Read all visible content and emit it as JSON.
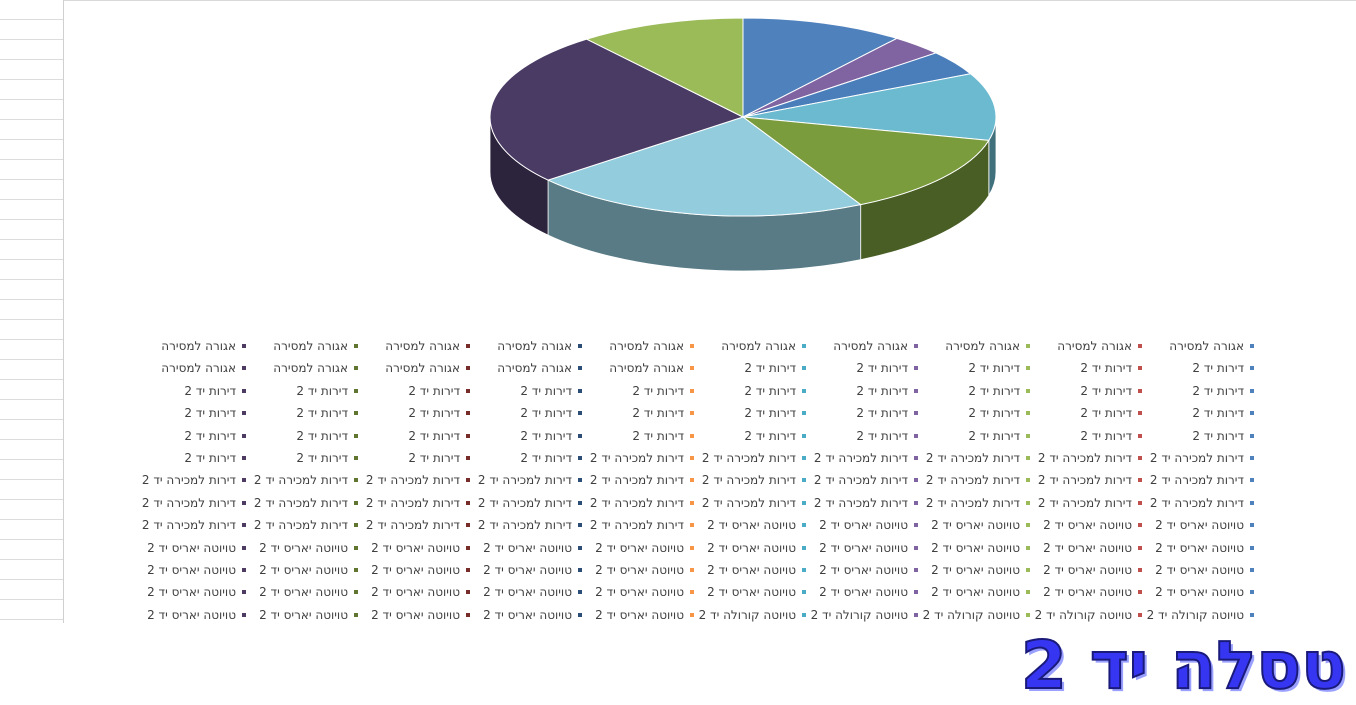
{
  "chart_data": {
    "type": "pie",
    "style": "3d",
    "title": "",
    "slices": [
      {
        "value": 10.4,
        "color": "#4f81bd"
      },
      {
        "value": 3.4,
        "color": "#8064a2"
      },
      {
        "value": 4.0,
        "color": "#4a7ebb"
      },
      {
        "value": 11.0,
        "color": "#6cbad0"
      },
      {
        "value": 13.5,
        "color": "#7a9c3d"
      },
      {
        "value": 21.7,
        "color": "#93cddd"
      },
      {
        "value": 25.4,
        "color": "#4a3b64"
      },
      {
        "value": 10.6,
        "color": "#9bbb59"
      }
    ],
    "legend": {
      "placement": "bottom",
      "columns": 10,
      "rows": [
        [
          "אגורה למסירה",
          "אגורה למסירה",
          "אגורה למסירה",
          "אגורה למסירה",
          "אגורה למסירה",
          "אגורה למסירה",
          "אגורה למסירה",
          "אגורה למסירה",
          "אגורה למסירה",
          "אגורה למסירה"
        ],
        [
          "דירות יד 2",
          "דירות יד 2",
          "דירות יד 2",
          "דירות יד 2",
          "דירות יד 2",
          "אגורה למסירה",
          "אגורה למסירה",
          "אגורה למסירה",
          "אגורה למסירה",
          "אגורה למסירה"
        ],
        [
          "דירות יד 2",
          "דירות יד 2",
          "דירות יד 2",
          "דירות יד 2",
          "דירות יד 2",
          "דירות יד 2",
          "דירות יד 2",
          "דירות יד 2",
          "דירות יד 2",
          "דירות יד 2"
        ],
        [
          "דירות יד 2",
          "דירות יד 2",
          "דירות יד 2",
          "דירות יד 2",
          "דירות יד 2",
          "דירות יד 2",
          "דירות יד 2",
          "דירות יד 2",
          "דירות יד 2",
          "דירות יד 2"
        ],
        [
          "דירות יד 2",
          "דירות יד 2",
          "דירות יד 2",
          "דירות יד 2",
          "דירות יד 2",
          "דירות יד 2",
          "דירות יד 2",
          "דירות יד 2",
          "דירות יד 2",
          "דירות יד 2"
        ],
        [
          "דירות למכירה יד 2",
          "דירות למכירה יד 2",
          "דירות למכירה יד 2",
          "דירות למכירה יד 2",
          "דירות למכירה יד 2",
          "דירות למכירה יד 2",
          "דירות יד 2",
          "דירות יד 2",
          "דירות יד 2",
          "דירות יד 2"
        ],
        [
          "דירות למכירה יד 2",
          "דירות למכירה יד 2",
          "דירות למכירה יד 2",
          "דירות למכירה יד 2",
          "דירות למכירה יד 2",
          "דירות למכירה יד 2",
          "דירות למכירה יד 2",
          "דירות למכירה יד 2",
          "דירות למכירה יד 2",
          "דירות למכירה יד 2"
        ],
        [
          "דירות למכירה יד 2",
          "דירות למכירה יד 2",
          "דירות למכירה יד 2",
          "דירות למכירה יד 2",
          "דירות למכירה יד 2",
          "דירות למכירה יד 2",
          "דירות למכירה יד 2",
          "דירות למכירה יד 2",
          "דירות למכירה יד 2",
          "דירות למכירה יד 2"
        ],
        [
          "טויוטה יאריס יד 2",
          "טויוטה יאריס יד 2",
          "טויוטה יאריס יד 2",
          "טויוטה יאריס יד 2",
          "טויוטה יאריס יד 2",
          "דירות למכירה יד 2",
          "דירות למכירה יד 2",
          "דירות למכירה יד 2",
          "דירות למכירה יד 2",
          "דירות למכירה יד 2"
        ],
        [
          "טויוטה יאריס יד 2",
          "טויוטה יאריס יד 2",
          "טויוטה יאריס יד 2",
          "טויוטה יאריס יד 2",
          "טויוטה יאריס יד 2",
          "טויוטה יאריס יד 2",
          "טויוטה יאריס יד 2",
          "טויוטה יאריס יד 2",
          "טויוטה יאריס יד 2",
          "טויוטה יאריס יד 2"
        ],
        [
          "טויוטה יאריס יד 2",
          "טויוטה יאריס יד 2",
          "טויוטה יאריס יד 2",
          "טויוטה יאריס יד 2",
          "טויוטה יאריס יד 2",
          "טויוטה יאריס יד 2",
          "טויוטה יאריס יד 2",
          "טויוטה יאריס יד 2",
          "טויוטה יאריס יד 2",
          "טויוטה יאריס יד 2"
        ],
        [
          "טויוטה יאריס יד 2",
          "טויוטה יאריס יד 2",
          "טויוטה יאריס יד 2",
          "טויוטה יאריס יד 2",
          "טויוטה יאריס יד 2",
          "טויוטה יאריס יד 2",
          "טויוטה יאריס יד 2",
          "טויוטה יאריס יד 2",
          "טויוטה יאריס יד 2",
          "טויוטה יאריס יד 2"
        ],
        [
          "טויוטה קורולה יד 2",
          "טויוטה קורולה יד 2",
          "טויוטה קורולה יד 2",
          "טויוטה קורולה יד 2",
          "טויוטה קורולה יד 2",
          "טויוטה יאריס יד 2",
          "טויוטה יאריס יד 2",
          "טויוטה יאריס יד 2",
          "טויוטה יאריס יד 2",
          "טויוטה יאריס יד 2"
        ]
      ],
      "swatch_colors": [
        "#4f81bd",
        "#c0504d",
        "#9bbb59",
        "#8064a2",
        "#4bacc6",
        "#f79646",
        "#2c4d75",
        "#772c2a",
        "#5f7530",
        "#4d3b62"
      ]
    }
  },
  "caption": "טסלה יד 2"
}
